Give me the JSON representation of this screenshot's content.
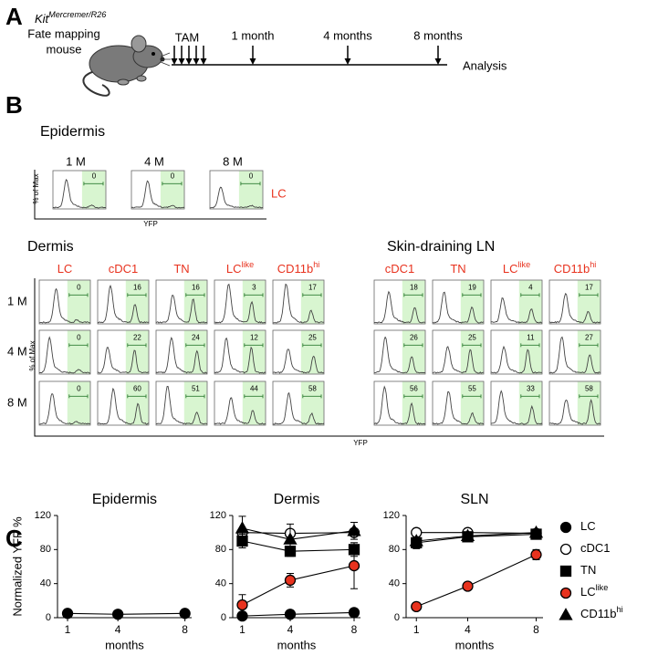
{
  "panel_a": {
    "letter": "A",
    "strain": {
      "text": "Kit",
      "sup": "Mercremer/R26"
    },
    "caption": [
      "Fate mapping",
      "mouse"
    ],
    "treatment": "TAM",
    "timepoints": [
      "1 month",
      "4 months",
      "8 months"
    ],
    "endpoint": "Analysis"
  },
  "panel_b": {
    "letter": "B",
    "epidermis": {
      "title": "Epidermis",
      "timepoints": [
        "1 M",
        "4 M",
        "8 M"
      ],
      "gates": [
        0,
        0,
        0
      ],
      "cell": "LC",
      "y_label": "% of Max",
      "x_label": "YFP"
    },
    "rows": [
      "1 M",
      "4 M",
      "8 M"
    ],
    "y_label": "% of Max",
    "x_label": "YFP",
    "dermis": {
      "title": "Dermis",
      "columns": [
        {
          "text": "LC"
        },
        {
          "text": "cDC1"
        },
        {
          "text": "TN"
        },
        {
          "text": "LC",
          "sup": "like"
        },
        {
          "text": "CD11b",
          "sup": "hi"
        }
      ],
      "gates": [
        [
          0,
          16,
          16,
          3,
          17
        ],
        [
          0,
          22,
          24,
          12,
          25
        ],
        [
          0,
          60,
          51,
          44,
          58
        ]
      ]
    },
    "sln": {
      "title": "Skin-draining LN",
      "columns": [
        {
          "text": "cDC1"
        },
        {
          "text": "TN"
        },
        {
          "text": "LC",
          "sup": "like"
        },
        {
          "text": "CD11b",
          "sup": "hi"
        }
      ],
      "gates": [
        [
          18,
          19,
          4,
          17
        ],
        [
          26,
          25,
          11,
          27
        ],
        [
          56,
          55,
          33,
          58
        ]
      ]
    }
  },
  "panel_c": {
    "letter": "C"
  },
  "chart_data": [
    {
      "type": "line",
      "title": "Epidermis",
      "ylabel": "Normalized YFP %",
      "xlabel": "months",
      "x": [
        1,
        4,
        8
      ],
      "xlim": [
        0.4,
        8.4
      ],
      "xticks": [
        1,
        4,
        8
      ],
      "ylim": [
        0,
        120
      ],
      "yticks": [
        0,
        40,
        80,
        120
      ],
      "series": [
        {
          "name": "LC",
          "color": "#000000",
          "marker": "circle",
          "values": [
            5,
            4,
            5
          ],
          "errors": [
            1,
            1,
            1
          ]
        }
      ]
    },
    {
      "type": "line",
      "title": "Dermis",
      "xlabel": "months",
      "x": [
        1,
        4,
        8
      ],
      "xlim": [
        0.4,
        8.4
      ],
      "xticks": [
        1,
        4,
        8
      ],
      "ylim": [
        0,
        120
      ],
      "yticks": [
        0,
        40,
        80,
        120
      ],
      "series": [
        {
          "name": "LC",
          "color": "#000000",
          "marker": "circle",
          "values": [
            2,
            4,
            6
          ],
          "errors": [
            1,
            3,
            2
          ]
        },
        {
          "name": "cDC1",
          "color": "#ffffff",
          "marker": "circle",
          "values": [
            100,
            99,
            100
          ],
          "errors": [
            3,
            3,
            4
          ]
        },
        {
          "name": "TN",
          "color": "#000000",
          "marker": "square",
          "values": [
            90,
            78,
            80
          ],
          "errors": [
            8,
            6,
            8
          ]
        },
        {
          "name": "LC",
          "name_sup": "like",
          "color": "#e8321e",
          "marker": "circle",
          "values": [
            15,
            44,
            61
          ],
          "errors": [
            12,
            8,
            27
          ]
        },
        {
          "name": "CD11b",
          "name_sup": "hi",
          "color": "#000000",
          "marker": "triangle",
          "values": [
            105,
            92,
            102
          ],
          "errors": [
            14,
            18,
            10
          ]
        }
      ]
    },
    {
      "type": "line",
      "title": "SLN",
      "xlabel": "months",
      "x": [
        1,
        4,
        8
      ],
      "xlim": [
        0.4,
        8.4
      ],
      "xticks": [
        1,
        4,
        8
      ],
      "ylim": [
        0,
        120
      ],
      "yticks": [
        0,
        40,
        80,
        120
      ],
      "series": [
        {
          "name": "cDC1",
          "color": "#ffffff",
          "marker": "circle",
          "values": [
            100,
            100,
            99
          ],
          "errors": [
            2,
            2,
            2
          ]
        },
        {
          "name": "TN",
          "color": "#000000",
          "marker": "square",
          "values": [
            88,
            95,
            98
          ],
          "errors": [
            7,
            3,
            2
          ]
        },
        {
          "name": "LC",
          "name_sup": "like",
          "color": "#e8321e",
          "marker": "circle",
          "values": [
            13,
            37,
            74
          ],
          "errors": [
            1,
            2,
            6
          ]
        },
        {
          "name": "CD11b",
          "name_sup": "hi",
          "color": "#000000",
          "marker": "triangle",
          "values": [
            90,
            96,
            100
          ],
          "errors": [
            3,
            2,
            2
          ]
        }
      ]
    }
  ]
}
